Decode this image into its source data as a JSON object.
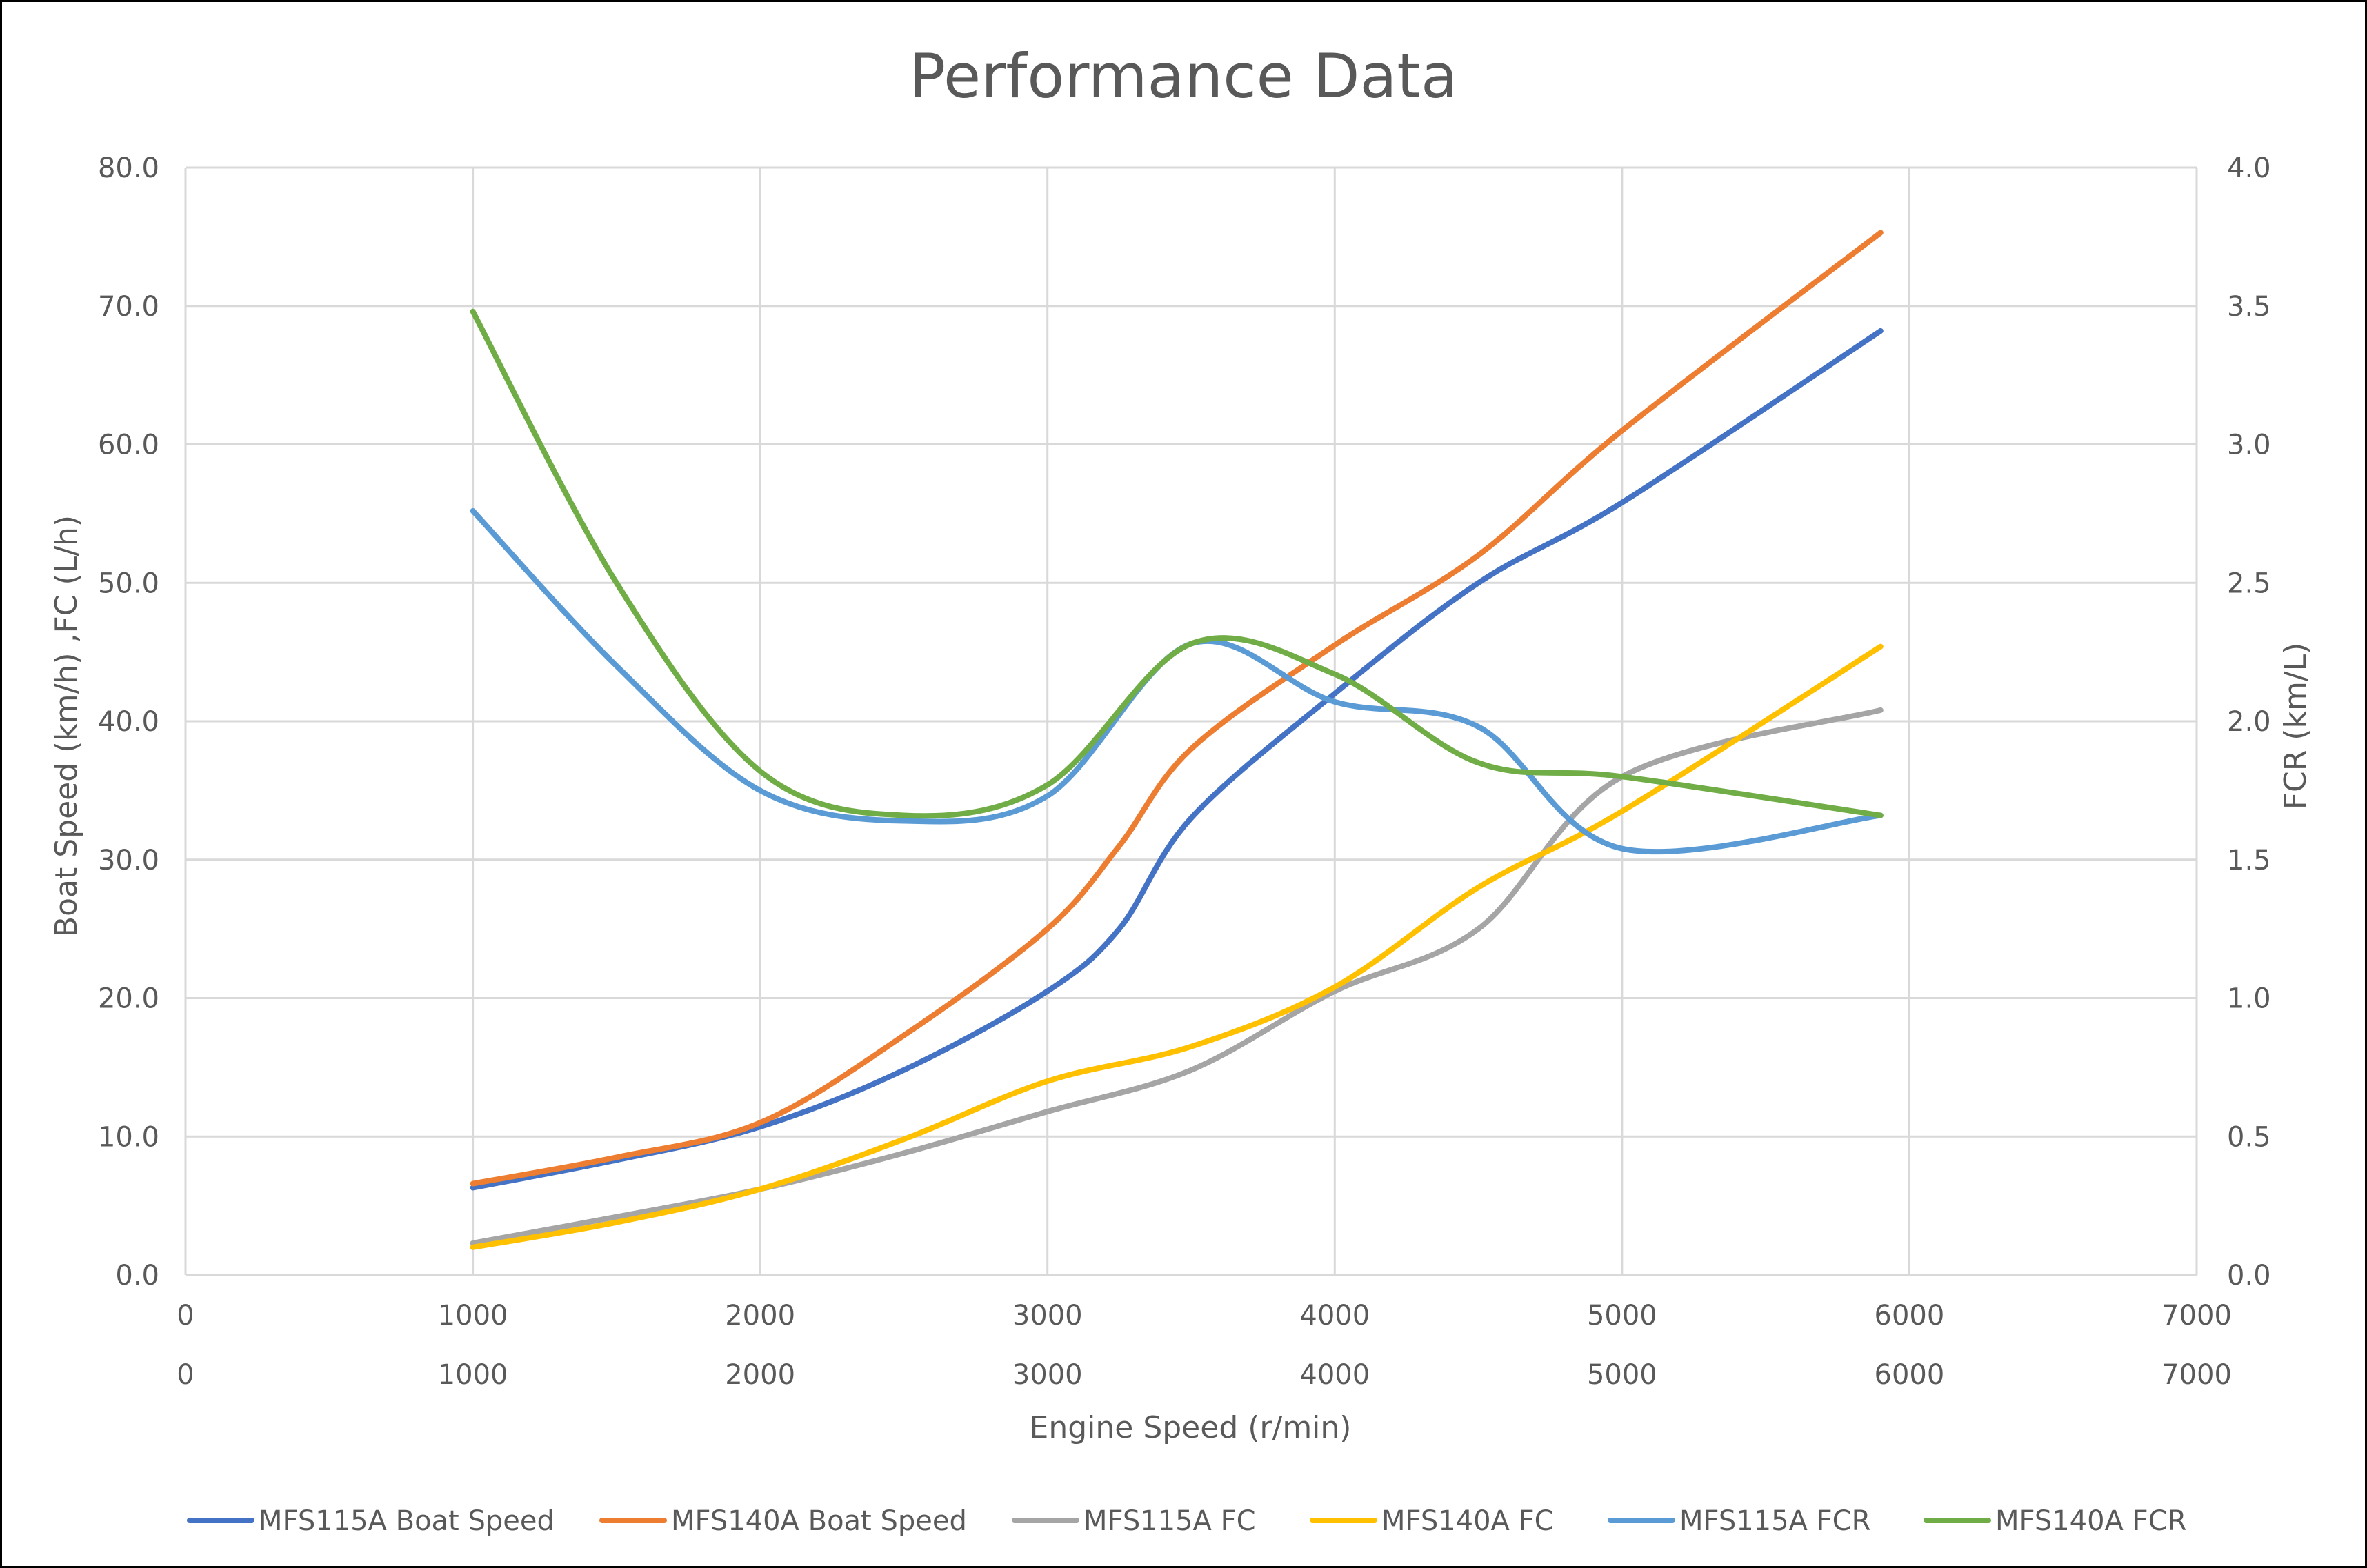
{
  "chart_data": {
    "type": "line",
    "title": "Performance Data",
    "xlabel": "Engine Speed (r/min)",
    "ylabel": "Boat Speed (km/h) ,FC (L/h)",
    "y2label": "FCR (km/L)",
    "xlim": [
      0,
      7000
    ],
    "ylim": [
      0,
      80
    ],
    "y2lim": [
      0,
      4
    ],
    "x_ticks": [
      "0",
      "1000",
      "2000",
      "3000",
      "4000",
      "5000",
      "6000",
      "7000"
    ],
    "x_ticks_secondary": [
      "0",
      "1000",
      "2000",
      "3000",
      "4000",
      "5000",
      "6000",
      "7000"
    ],
    "y_ticks": [
      "0.0",
      "10.0",
      "20.0",
      "30.0",
      "40.0",
      "50.0",
      "60.0",
      "70.0",
      "80.0"
    ],
    "y2_ticks": [
      "0.0",
      "0.5",
      "1.0",
      "1.5",
      "2.0",
      "2.5",
      "3.0",
      "3.5",
      "4.0"
    ],
    "grid": true,
    "legend_position": "bottom",
    "series": [
      {
        "name": "MFS115A Boat Speed",
        "axis": "left",
        "color": "#4472C4",
        "points": [
          [
            1000,
            6.3
          ],
          [
            1500,
            8.3
          ],
          [
            2000,
            10.7
          ],
          [
            2500,
            14.8
          ],
          [
            3000,
            20.5
          ],
          [
            3250,
            25.0
          ],
          [
            3500,
            33.0
          ],
          [
            4000,
            42.0
          ],
          [
            4500,
            50.0
          ],
          [
            5000,
            55.8
          ],
          [
            5900,
            68.2
          ]
        ]
      },
      {
        "name": "MFS140A Boat Speed",
        "axis": "left",
        "color": "#ED7D31",
        "points": [
          [
            1000,
            6.6
          ],
          [
            1500,
            8.5
          ],
          [
            2000,
            11.0
          ],
          [
            2500,
            17.3
          ],
          [
            3000,
            25.0
          ],
          [
            3250,
            31.0
          ],
          [
            3500,
            38.0
          ],
          [
            4000,
            45.5
          ],
          [
            4500,
            52.0
          ],
          [
            5000,
            61.0
          ],
          [
            5900,
            75.3
          ]
        ]
      },
      {
        "name": "MFS115A FC",
        "axis": "left",
        "color": "#A5A5A5",
        "points": [
          [
            1000,
            2.3
          ],
          [
            1500,
            4.2
          ],
          [
            2000,
            6.2
          ],
          [
            2500,
            8.8
          ],
          [
            3000,
            11.8
          ],
          [
            3500,
            14.8
          ],
          [
            4000,
            20.5
          ],
          [
            4500,
            25.0
          ],
          [
            5000,
            36.0
          ],
          [
            5900,
            40.8
          ]
        ]
      },
      {
        "name": "MFS140A FC",
        "axis": "left",
        "color": "#FFC000",
        "points": [
          [
            1000,
            2.0
          ],
          [
            1500,
            3.8
          ],
          [
            2000,
            6.2
          ],
          [
            2500,
            9.8
          ],
          [
            3000,
            14.0
          ],
          [
            3500,
            16.5
          ],
          [
            4000,
            20.8
          ],
          [
            4500,
            28.0
          ],
          [
            5000,
            33.5
          ],
          [
            5900,
            45.4
          ]
        ]
      },
      {
        "name": "MFS115A FCR",
        "axis": "right",
        "color": "#5B9BD5",
        "points": [
          [
            1000,
            2.76
          ],
          [
            1500,
            2.2
          ],
          [
            2000,
            1.75
          ],
          [
            2500,
            1.64
          ],
          [
            3000,
            1.73
          ],
          [
            3500,
            2.28
          ],
          [
            4000,
            2.07
          ],
          [
            4500,
            1.98
          ],
          [
            5000,
            1.54
          ],
          [
            5900,
            1.66
          ]
        ]
      },
      {
        "name": "MFS140A FCR",
        "axis": "right",
        "color": "#70AD47",
        "points": [
          [
            1000,
            3.48
          ],
          [
            1500,
            2.5
          ],
          [
            2000,
            1.82
          ],
          [
            2500,
            1.66
          ],
          [
            3000,
            1.77
          ],
          [
            3500,
            2.28
          ],
          [
            4000,
            2.17
          ],
          [
            4500,
            1.85
          ],
          [
            5000,
            1.8
          ],
          [
            5900,
            1.66
          ]
        ]
      }
    ]
  }
}
